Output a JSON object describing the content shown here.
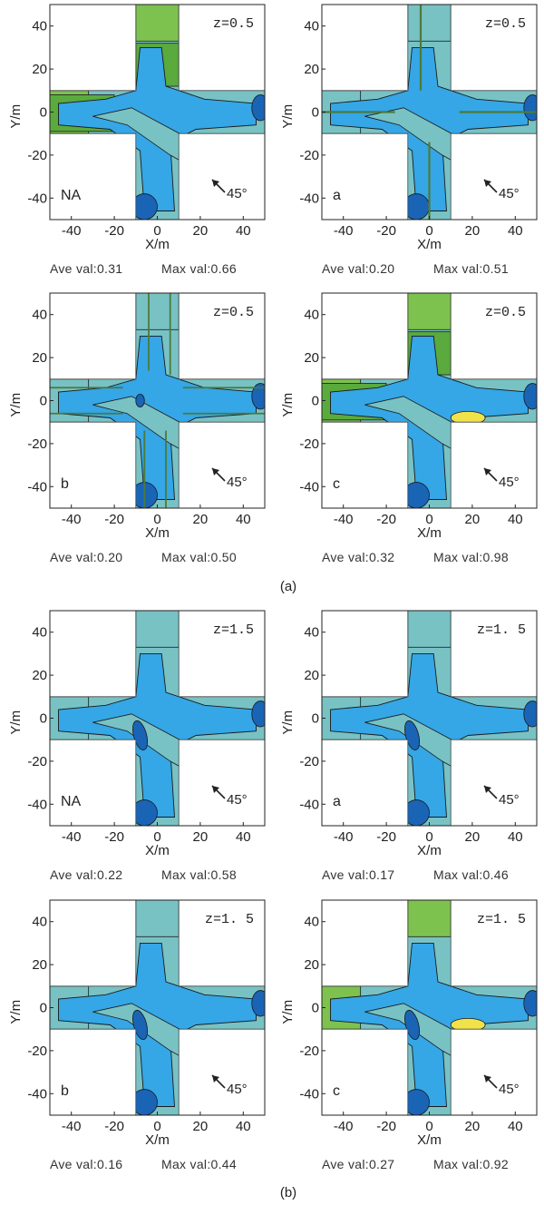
{
  "axis_labels": {
    "x": "X/m",
    "y": "Y/m"
  },
  "wind_direction_label": "45°",
  "section_labels": [
    "(a)",
    "(b)"
  ],
  "colors": {
    "white": "#ffffff",
    "light_green": "#7dc24f",
    "green": "#5aaa3e",
    "teal": "#78c2c4",
    "blue": "#35a6e6",
    "dark_blue": "#1a64b6",
    "yellow": "#f1e24a",
    "outline": "#1a1a1a"
  },
  "chart_data": [
    {
      "type": "contour",
      "section": "(a)",
      "height_label": "z=0.5",
      "case_label": "NA",
      "stats": {
        "ave_label": "Ave val:0.31",
        "max_label": "Max val:0.66"
      },
      "xlabel": "X/m",
      "ylabel": "Y/m",
      "xlim": [
        -50,
        50
      ],
      "ylim": [
        -50,
        50
      ],
      "xticks": [
        -40,
        -20,
        0,
        20,
        40
      ],
      "yticks": [
        40,
        20,
        0,
        -20,
        -40
      ],
      "wind_direction": "45°"
    },
    {
      "type": "contour",
      "section": "(a)",
      "height_label": "z=0.5",
      "case_label": "a",
      "stats": {
        "ave_label": "Ave val:0.20",
        "max_label": "Max val:0.51"
      },
      "xlabel": "X/m",
      "ylabel": "Y/m",
      "xlim": [
        -50,
        50
      ],
      "ylim": [
        -50,
        50
      ],
      "xticks": [
        -40,
        -20,
        0,
        20,
        40
      ],
      "yticks": [
        40,
        20,
        0,
        -20,
        -40
      ],
      "wind_direction": "45°"
    },
    {
      "type": "contour",
      "section": "(a)",
      "height_label": "z=0.5",
      "case_label": "b",
      "stats": {
        "ave_label": "Ave val:0.20",
        "max_label": "Max val:0.50"
      },
      "xlabel": "X/m",
      "ylabel": "Y/m",
      "xlim": [
        -50,
        50
      ],
      "ylim": [
        -50,
        50
      ],
      "xticks": [
        -40,
        -20,
        0,
        20,
        40
      ],
      "yticks": [
        40,
        20,
        0,
        -20,
        -40
      ],
      "wind_direction": "45°"
    },
    {
      "type": "contour",
      "section": "(a)",
      "height_label": "z=0.5",
      "case_label": "c",
      "stats": {
        "ave_label": "Ave val:0.32",
        "max_label": "Max val:0.98"
      },
      "xlabel": "X/m",
      "ylabel": "Y/m",
      "xlim": [
        -50,
        50
      ],
      "ylim": [
        -50,
        50
      ],
      "xticks": [
        -40,
        -20,
        0,
        20,
        40
      ],
      "yticks": [
        40,
        20,
        0,
        -20,
        -40
      ],
      "wind_direction": "45°"
    },
    {
      "type": "contour",
      "section": "(b)",
      "height_label": "z=1.5",
      "case_label": "NA",
      "stats": {
        "ave_label": "Ave val:0.22",
        "max_label": "Max val:0.58"
      },
      "xlabel": "X/m",
      "ylabel": "Y/m",
      "xlim": [
        -50,
        50
      ],
      "ylim": [
        -50,
        50
      ],
      "xticks": [
        -40,
        -20,
        0,
        20,
        40
      ],
      "yticks": [
        40,
        20,
        0,
        -20,
        -40
      ],
      "wind_direction": "45°"
    },
    {
      "type": "contour",
      "section": "(b)",
      "height_label": "z=1. 5",
      "case_label": "a",
      "stats": {
        "ave_label": "Ave val:0.17",
        "max_label": "Max val:0.46"
      },
      "xlabel": "X/m",
      "ylabel": "Y/m",
      "xlim": [
        -50,
        50
      ],
      "ylim": [
        -50,
        50
      ],
      "xticks": [
        -40,
        -20,
        0,
        20,
        40
      ],
      "yticks": [
        40,
        20,
        0,
        -20,
        -40
      ],
      "wind_direction": "45°"
    },
    {
      "type": "contour",
      "section": "(b)",
      "height_label": "z=1. 5",
      "case_label": "b",
      "stats": {
        "ave_label": "Ave val:0.16",
        "max_label": "Max val:0.44"
      },
      "xlabel": "X/m",
      "ylabel": "Y/m",
      "xlim": [
        -50,
        50
      ],
      "ylim": [
        -50,
        50
      ],
      "xticks": [
        -40,
        -20,
        0,
        20,
        40
      ],
      "yticks": [
        40,
        20,
        0,
        -20,
        -40
      ],
      "wind_direction": "45°"
    },
    {
      "type": "contour",
      "section": "(b)",
      "height_label": "z=1. 5",
      "case_label": "c",
      "stats": {
        "ave_label": "Ave val:0.27",
        "max_label": "Max val:0.92"
      },
      "xlabel": "X/m",
      "ylabel": "Y/m",
      "xlim": [
        -50,
        50
      ],
      "ylim": [
        -50,
        50
      ],
      "xticks": [
        -40,
        -20,
        0,
        20,
        40
      ],
      "yticks": [
        40,
        20,
        0,
        -20,
        -40
      ],
      "wind_direction": "45°"
    }
  ]
}
